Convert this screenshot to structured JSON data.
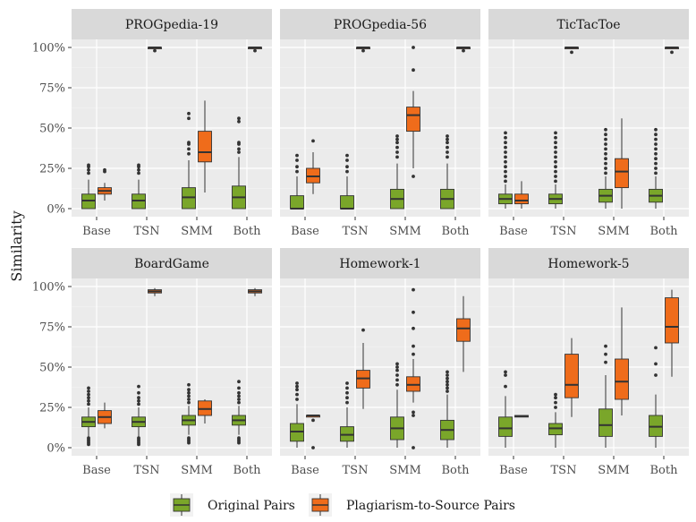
{
  "chart_data": {
    "type": "box",
    "ylabel": "Similarity",
    "yticks": [
      "0%",
      "25%",
      "50%",
      "75%",
      "100%"
    ],
    "ylim": [
      -0.05,
      1.05
    ],
    "categories": [
      "Base",
      "TSN",
      "SMM",
      "Both"
    ],
    "colors": {
      "Original Pairs": "#7aa62a",
      "Plagiarism-to-Source Pairs": "#ef6c1b"
    },
    "legend": {
      "placement": "bottom",
      "entries": [
        "Original Pairs",
        "Plagiarism-to-Source Pairs"
      ]
    },
    "panels": [
      {
        "title": "PROGpedia-19",
        "boxes": [
          {
            "category": "Base",
            "series": "Original Pairs",
            "min": 0.0,
            "q1": 0.0,
            "median": 0.05,
            "q3": 0.09,
            "max": 0.18,
            "outliers": [
              0.22,
              0.24,
              0.26,
              0.27
            ]
          },
          {
            "category": "Base",
            "series": "Plagiarism-to-Source Pairs",
            "min": 0.05,
            "q1": 0.09,
            "median": 0.11,
            "q3": 0.13,
            "max": 0.16,
            "outliers": [
              0.23,
              0.24
            ]
          },
          {
            "category": "TSN",
            "series": "Original Pairs",
            "min": 0.0,
            "q1": 0.0,
            "median": 0.05,
            "q3": 0.09,
            "max": 0.18,
            "outliers": [
              0.22,
              0.24,
              0.26,
              0.27
            ]
          },
          {
            "category": "TSN",
            "series": "Plagiarism-to-Source Pairs",
            "min": 0.99,
            "q1": 0.995,
            "median": 1.0,
            "q3": 1.0,
            "max": 1.0,
            "outliers": [
              0.98
            ]
          },
          {
            "category": "SMM",
            "series": "Original Pairs",
            "min": 0.0,
            "q1": 0.0,
            "median": 0.07,
            "q3": 0.13,
            "max": 0.3,
            "outliers": [
              0.34,
              0.37,
              0.4,
              0.41,
              0.56,
              0.59
            ]
          },
          {
            "category": "SMM",
            "series": "Plagiarism-to-Source Pairs",
            "min": 0.1,
            "q1": 0.29,
            "median": 0.35,
            "q3": 0.48,
            "max": 0.67,
            "outliers": []
          },
          {
            "category": "Both",
            "series": "Original Pairs",
            "min": 0.0,
            "q1": 0.0,
            "median": 0.07,
            "q3": 0.14,
            "max": 0.32,
            "outliers": [
              0.35,
              0.37,
              0.4,
              0.41,
              0.54,
              0.56
            ]
          },
          {
            "category": "Both",
            "series": "Plagiarism-to-Source Pairs",
            "min": 0.99,
            "q1": 0.995,
            "median": 1.0,
            "q3": 1.0,
            "max": 1.0,
            "outliers": [
              0.98
            ]
          }
        ]
      },
      {
        "title": "PROGpedia-56",
        "boxes": [
          {
            "category": "Base",
            "series": "Original Pairs",
            "min": 0.0,
            "q1": 0.0,
            "median": 0.0,
            "q3": 0.08,
            "max": 0.2,
            "outliers": [
              0.23,
              0.26,
              0.3,
              0.33
            ]
          },
          {
            "category": "Base",
            "series": "Plagiarism-to-Source Pairs",
            "min": 0.09,
            "q1": 0.16,
            "median": 0.2,
            "q3": 0.25,
            "max": 0.35,
            "outliers": [
              0.42
            ]
          },
          {
            "category": "TSN",
            "series": "Original Pairs",
            "min": 0.0,
            "q1": 0.0,
            "median": 0.0,
            "q3": 0.08,
            "max": 0.2,
            "outliers": [
              0.23,
              0.26,
              0.3,
              0.33
            ]
          },
          {
            "category": "TSN",
            "series": "Plagiarism-to-Source Pairs",
            "min": 0.99,
            "q1": 0.995,
            "median": 1.0,
            "q3": 1.0,
            "max": 1.0,
            "outliers": [
              0.98
            ]
          },
          {
            "category": "SMM",
            "series": "Original Pairs",
            "min": 0.0,
            "q1": 0.0,
            "median": 0.06,
            "q3": 0.12,
            "max": 0.28,
            "outliers": [
              0.32,
              0.35,
              0.38,
              0.41,
              0.43,
              0.45
            ]
          },
          {
            "category": "SMM",
            "series": "Plagiarism-to-Source Pairs",
            "min": 0.25,
            "q1": 0.48,
            "median": 0.58,
            "q3": 0.63,
            "max": 0.73,
            "outliers": [
              0.2,
              0.86,
              1.0
            ]
          },
          {
            "category": "Both",
            "series": "Original Pairs",
            "min": 0.0,
            "q1": 0.0,
            "median": 0.06,
            "q3": 0.12,
            "max": 0.28,
            "outliers": [
              0.32,
              0.35,
              0.38,
              0.41,
              0.43,
              0.45
            ]
          },
          {
            "category": "Both",
            "series": "Plagiarism-to-Source Pairs",
            "min": 0.99,
            "q1": 0.995,
            "median": 1.0,
            "q3": 1.0,
            "max": 1.0,
            "outliers": [
              0.98
            ]
          }
        ]
      },
      {
        "title": "TicTacToe",
        "boxes": [
          {
            "category": "Base",
            "series": "Original Pairs",
            "min": 0.0,
            "q1": 0.03,
            "median": 0.06,
            "q3": 0.09,
            "max": 0.15,
            "outliers": [
              0.17,
              0.2,
              0.23,
              0.26,
              0.29,
              0.32,
              0.35,
              0.38,
              0.41,
              0.44,
              0.47
            ]
          },
          {
            "category": "Base",
            "series": "Plagiarism-to-Source Pairs",
            "min": 0.0,
            "q1": 0.03,
            "median": 0.05,
            "q3": 0.09,
            "max": 0.17,
            "outliers": []
          },
          {
            "category": "TSN",
            "series": "Original Pairs",
            "min": 0.0,
            "q1": 0.03,
            "median": 0.06,
            "q3": 0.09,
            "max": 0.15,
            "outliers": [
              0.17,
              0.2,
              0.23,
              0.26,
              0.29,
              0.32,
              0.35,
              0.38,
              0.41,
              0.44,
              0.47
            ]
          },
          {
            "category": "TSN",
            "series": "Plagiarism-to-Source Pairs",
            "min": 0.99,
            "q1": 0.995,
            "median": 1.0,
            "q3": 1.0,
            "max": 1.0,
            "outliers": [
              0.97
            ]
          },
          {
            "category": "SMM",
            "series": "Original Pairs",
            "min": 0.0,
            "q1": 0.04,
            "median": 0.08,
            "q3": 0.12,
            "max": 0.2,
            "outliers": [
              0.22,
              0.25,
              0.28,
              0.31,
              0.34,
              0.37,
              0.4,
              0.43,
              0.46,
              0.49
            ]
          },
          {
            "category": "SMM",
            "series": "Plagiarism-to-Source Pairs",
            "min": 0.0,
            "q1": 0.13,
            "median": 0.23,
            "q3": 0.31,
            "max": 0.56,
            "outliers": []
          },
          {
            "category": "Both",
            "series": "Original Pairs",
            "min": 0.0,
            "q1": 0.04,
            "median": 0.08,
            "q3": 0.12,
            "max": 0.2,
            "outliers": [
              0.22,
              0.25,
              0.28,
              0.31,
              0.34,
              0.37,
              0.4,
              0.43,
              0.46,
              0.49
            ]
          },
          {
            "category": "Both",
            "series": "Plagiarism-to-Source Pairs",
            "min": 0.99,
            "q1": 0.995,
            "median": 1.0,
            "q3": 1.0,
            "max": 1.0,
            "outliers": [
              0.97
            ]
          }
        ]
      },
      {
        "title": "BoardGame",
        "boxes": [
          {
            "category": "Base",
            "series": "Original Pairs",
            "min": 0.07,
            "q1": 0.13,
            "median": 0.16,
            "q3": 0.19,
            "max": 0.25,
            "outliers": [
              0.02,
              0.03,
              0.04,
              0.05,
              0.06,
              0.27,
              0.29,
              0.31,
              0.33,
              0.35,
              0.37
            ]
          },
          {
            "category": "Base",
            "series": "Plagiarism-to-Source Pairs",
            "min": 0.12,
            "q1": 0.15,
            "median": 0.19,
            "q3": 0.23,
            "max": 0.28,
            "outliers": []
          },
          {
            "category": "TSN",
            "series": "Original Pairs",
            "min": 0.07,
            "q1": 0.13,
            "median": 0.16,
            "q3": 0.19,
            "max": 0.25,
            "outliers": [
              0.02,
              0.03,
              0.04,
              0.05,
              0.06,
              0.27,
              0.29,
              0.31,
              0.34,
              0.38
            ]
          },
          {
            "category": "TSN",
            "series": "Plagiarism-to-Source Pairs",
            "min": 0.94,
            "q1": 0.96,
            "median": 0.97,
            "q3": 0.98,
            "max": 0.99,
            "outliers": []
          },
          {
            "category": "SMM",
            "series": "Original Pairs",
            "min": 0.08,
            "q1": 0.14,
            "median": 0.17,
            "q3": 0.2,
            "max": 0.26,
            "outliers": [
              0.03,
              0.04,
              0.05,
              0.06,
              0.28,
              0.3,
              0.32,
              0.34,
              0.36,
              0.39
            ]
          },
          {
            "category": "SMM",
            "series": "Plagiarism-to-Source Pairs",
            "min": 0.15,
            "q1": 0.2,
            "median": 0.24,
            "q3": 0.29,
            "max": 0.3,
            "outliers": []
          },
          {
            "category": "Both",
            "series": "Original Pairs",
            "min": 0.08,
            "q1": 0.14,
            "median": 0.17,
            "q3": 0.2,
            "max": 0.26,
            "outliers": [
              0.03,
              0.04,
              0.05,
              0.06,
              0.28,
              0.3,
              0.32,
              0.34,
              0.37,
              0.41
            ]
          },
          {
            "category": "Both",
            "series": "Plagiarism-to-Source Pairs",
            "min": 0.94,
            "q1": 0.96,
            "median": 0.97,
            "q3": 0.98,
            "max": 0.99,
            "outliers": []
          }
        ]
      },
      {
        "title": "Homework-1",
        "boxes": [
          {
            "category": "Base",
            "series": "Original Pairs",
            "min": 0.0,
            "q1": 0.04,
            "median": 0.1,
            "q3": 0.15,
            "max": 0.27,
            "outliers": [
              0.3,
              0.33,
              0.36,
              0.38,
              0.4
            ]
          },
          {
            "category": "Base",
            "series": "Plagiarism-to-Source Pairs",
            "min": 0.19,
            "q1": 0.19,
            "median": 0.2,
            "q3": 0.2,
            "max": 0.2,
            "outliers": [
              0.0,
              0.17
            ]
          },
          {
            "category": "TSN",
            "series": "Original Pairs",
            "min": 0.0,
            "q1": 0.04,
            "median": 0.08,
            "q3": 0.13,
            "max": 0.25,
            "outliers": [
              0.28,
              0.31,
              0.34,
              0.37,
              0.4
            ]
          },
          {
            "category": "TSN",
            "series": "Plagiarism-to-Source Pairs",
            "min": 0.24,
            "q1": 0.37,
            "median": 0.43,
            "q3": 0.48,
            "max": 0.65,
            "outliers": [
              0.73
            ]
          },
          {
            "category": "SMM",
            "series": "Original Pairs",
            "min": 0.0,
            "q1": 0.05,
            "median": 0.12,
            "q3": 0.19,
            "max": 0.36,
            "outliers": [
              0.39,
              0.42,
              0.45,
              0.48,
              0.5,
              0.52
            ]
          },
          {
            "category": "SMM",
            "series": "Plagiarism-to-Source Pairs",
            "min": 0.28,
            "q1": 0.35,
            "median": 0.39,
            "q3": 0.44,
            "max": 0.55,
            "outliers": [
              0.0,
              0.2,
              0.22,
              0.58,
              0.63,
              0.74,
              0.84,
              0.98
            ]
          },
          {
            "category": "Both",
            "series": "Original Pairs",
            "min": 0.0,
            "q1": 0.05,
            "median": 0.11,
            "q3": 0.17,
            "max": 0.33,
            "outliers": [
              0.35,
              0.37,
              0.39,
              0.41,
              0.43,
              0.45,
              0.47
            ]
          },
          {
            "category": "Both",
            "series": "Plagiarism-to-Source Pairs",
            "min": 0.47,
            "q1": 0.66,
            "median": 0.74,
            "q3": 0.8,
            "max": 0.94,
            "outliers": []
          }
        ]
      },
      {
        "title": "Homework-5",
        "boxes": [
          {
            "category": "Base",
            "series": "Original Pairs",
            "min": 0.0,
            "q1": 0.07,
            "median": 0.12,
            "q3": 0.19,
            "max": 0.32,
            "outliers": [
              0.38,
              0.45,
              0.47
            ]
          },
          {
            "category": "Base",
            "series": "Plagiarism-to-Source Pairs",
            "min": 0.19,
            "q1": 0.19,
            "median": 0.195,
            "q3": 0.2,
            "max": 0.2,
            "outliers": []
          },
          {
            "category": "TSN",
            "series": "Original Pairs",
            "min": 0.0,
            "q1": 0.08,
            "median": 0.12,
            "q3": 0.15,
            "max": 0.22,
            "outliers": [
              0.25,
              0.28,
              0.31,
              0.33
            ]
          },
          {
            "category": "TSN",
            "series": "Plagiarism-to-Source Pairs",
            "min": 0.19,
            "q1": 0.31,
            "median": 0.39,
            "q3": 0.58,
            "max": 0.68,
            "outliers": []
          },
          {
            "category": "SMM",
            "series": "Original Pairs",
            "min": 0.0,
            "q1": 0.07,
            "median": 0.14,
            "q3": 0.24,
            "max": 0.45,
            "outliers": [
              0.53,
              0.58,
              0.63
            ]
          },
          {
            "category": "SMM",
            "series": "Plagiarism-to-Source Pairs",
            "min": 0.2,
            "q1": 0.3,
            "median": 0.41,
            "q3": 0.55,
            "max": 0.87,
            "outliers": []
          },
          {
            "category": "Both",
            "series": "Original Pairs",
            "min": 0.0,
            "q1": 0.07,
            "median": 0.13,
            "q3": 0.2,
            "max": 0.33,
            "outliers": [
              0.45,
              0.52,
              0.62
            ]
          },
          {
            "category": "Both",
            "series": "Plagiarism-to-Source Pairs",
            "min": 0.44,
            "q1": 0.65,
            "median": 0.75,
            "q3": 0.93,
            "max": 0.98,
            "outliers": []
          }
        ]
      }
    ]
  }
}
